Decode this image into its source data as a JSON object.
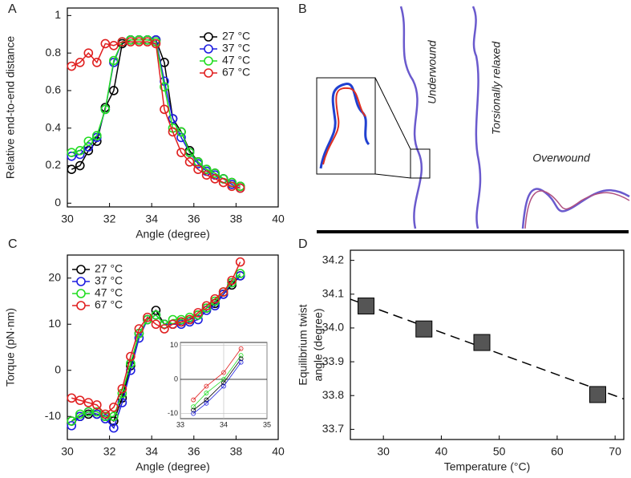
{
  "chart_data": [
    {
      "panel": "A",
      "type": "line",
      "xlabel": "Angle (degree)",
      "ylabel": "Relative end-to-end distance",
      "xlim": [
        30,
        40
      ],
      "ylim": [
        -0.02,
        1.04
      ],
      "xticks": [
        30,
        32,
        34,
        36,
        38,
        40
      ],
      "yticks": [
        0,
        0.2,
        0.4,
        0.6,
        0.8,
        1
      ],
      "legend": "upper right",
      "marker": "circle",
      "x": [
        30.2,
        30.6,
        31.0,
        31.4,
        31.8,
        32.2,
        32.6,
        33.0,
        33.4,
        33.8,
        34.2,
        34.6,
        35.0,
        35.4,
        35.8,
        36.2,
        36.6,
        37.0,
        37.4,
        37.8,
        38.2
      ],
      "series": [
        {
          "name": "27 °C",
          "color": "#000000",
          "values": [
            0.18,
            0.2,
            0.28,
            0.33,
            0.51,
            0.6,
            0.85,
            0.87,
            0.87,
            0.87,
            0.87,
            0.75,
            0.45,
            0.38,
            0.28,
            0.22,
            0.18,
            0.16,
            0.13,
            0.11,
            0.09
          ]
        },
        {
          "name": "37 °C",
          "color": "#1f1fe0",
          "values": [
            0.25,
            0.26,
            0.3,
            0.35,
            0.5,
            0.75,
            0.86,
            0.87,
            0.87,
            0.87,
            0.87,
            0.65,
            0.45,
            0.35,
            0.27,
            0.21,
            0.17,
            0.15,
            0.13,
            0.1,
            0.08
          ]
        },
        {
          "name": "47 °C",
          "color": "#22dd22",
          "values": [
            0.27,
            0.28,
            0.33,
            0.36,
            0.5,
            0.76,
            0.86,
            0.87,
            0.87,
            0.87,
            0.86,
            0.62,
            0.4,
            0.38,
            0.27,
            0.22,
            0.18,
            0.16,
            0.13,
            0.11,
            0.09
          ]
        },
        {
          "name": "67 °C",
          "color": "#e02020",
          "values": [
            0.73,
            0.75,
            0.8,
            0.75,
            0.85,
            0.84,
            0.86,
            0.86,
            0.86,
            0.86,
            0.85,
            0.5,
            0.38,
            0.27,
            0.22,
            0.18,
            0.15,
            0.13,
            0.11,
            0.09,
            0.08
          ]
        }
      ]
    },
    {
      "panel": "C",
      "type": "line",
      "xlabel": "Angle (degree)",
      "ylabel": "Torque (pN·nm)",
      "xlim": [
        30,
        40
      ],
      "ylim": [
        -15,
        25
      ],
      "xticks": [
        30,
        32,
        34,
        36,
        38,
        40
      ],
      "yticks": [
        -10,
        0,
        10,
        20
      ],
      "legend": "upper left",
      "marker": "circle",
      "x": [
        30.2,
        30.6,
        31.0,
        31.4,
        31.8,
        32.2,
        32.6,
        33.0,
        33.4,
        33.8,
        34.2,
        34.6,
        35.0,
        35.4,
        35.8,
        36.2,
        36.6,
        37.0,
        37.4,
        37.8,
        38.2
      ],
      "series": [
        {
          "name": "27 °C",
          "color": "#000000",
          "values": [
            -11,
            -10,
            -9.5,
            -9.5,
            -10,
            -11,
            -6,
            1,
            8,
            11,
            13,
            10,
            10,
            10.5,
            11,
            12,
            13.5,
            14.5,
            16.5,
            18.5,
            20.5
          ]
        },
        {
          "name": "37 °C",
          "color": "#1f1fe0",
          "values": [
            -12,
            -10,
            -9,
            -9.5,
            -10.5,
            -12.5,
            -7,
            0,
            7,
            11,
            12,
            10,
            10,
            10,
            10.5,
            11,
            13,
            14,
            16.5,
            19,
            20.5
          ]
        },
        {
          "name": "47 °C",
          "color": "#22dd22",
          "values": [
            -11,
            -9.5,
            -9,
            -9,
            -10,
            -10,
            -5,
            1.5,
            8,
            11,
            12,
            10,
            11,
            11,
            11.5,
            12,
            13.5,
            15,
            17,
            19,
            21
          ]
        },
        {
          "name": "67 °C",
          "color": "#e02020",
          "values": [
            -6,
            -6.5,
            -7,
            -7.5,
            -9.5,
            -8,
            -4,
            3,
            9,
            11.5,
            10,
            9,
            10,
            10.5,
            11,
            12.5,
            14,
            15.5,
            17,
            19.5,
            23.5
          ]
        }
      ]
    },
    {
      "type": "line",
      "xlim": [
        33,
        35
      ],
      "ylim": [
        -11.5,
        10.8
      ],
      "xticks": [
        33,
        34,
        35
      ],
      "yticks": [
        -10,
        0,
        10
      ],
      "grid": true,
      "marker": "circle",
      "x": [
        33.3,
        33.6,
        34.0,
        34.4
      ],
      "series": [
        {
          "color": "#e02020",
          "values": [
            -6,
            -2,
            2,
            9
          ]
        },
        {
          "color": "#22dd22",
          "values": [
            -8,
            -4,
            0,
            7
          ]
        },
        {
          "color": "#000000",
          "values": [
            -9,
            -6,
            -1,
            6
          ]
        },
        {
          "color": "#1f1fe0",
          "values": [
            -10,
            -7,
            -2,
            5
          ]
        }
      ]
    },
    {
      "panel": "D",
      "type": "scatter",
      "xlabel": "Temperature (°C)",
      "ylabel": [
        "Equilibrium twist",
        "angle (degree)"
      ],
      "xlim": [
        24.3,
        71.5
      ],
      "ylim": [
        33.67,
        34.23
      ],
      "xticks": [
        30,
        40,
        50,
        60,
        70
      ],
      "yticks": [
        33.7,
        33.8,
        33.9,
        {
          "value": 34,
          "label": "34.0"
        },
        34.1,
        34.2
      ],
      "marker": "square",
      "color": "#555555",
      "x": [
        27,
        37,
        47,
        67
      ],
      "values": [
        34.065,
        33.997,
        33.957,
        33.803
      ],
      "fit": {
        "x": [
          24.3,
          71.5
        ],
        "values": [
          34.085,
          33.79
        ]
      }
    }
  ],
  "diagram": {
    "label": "B",
    "annotations": [
      "Underwound",
      "Torsionally relaxed",
      "Overwound"
    ]
  }
}
